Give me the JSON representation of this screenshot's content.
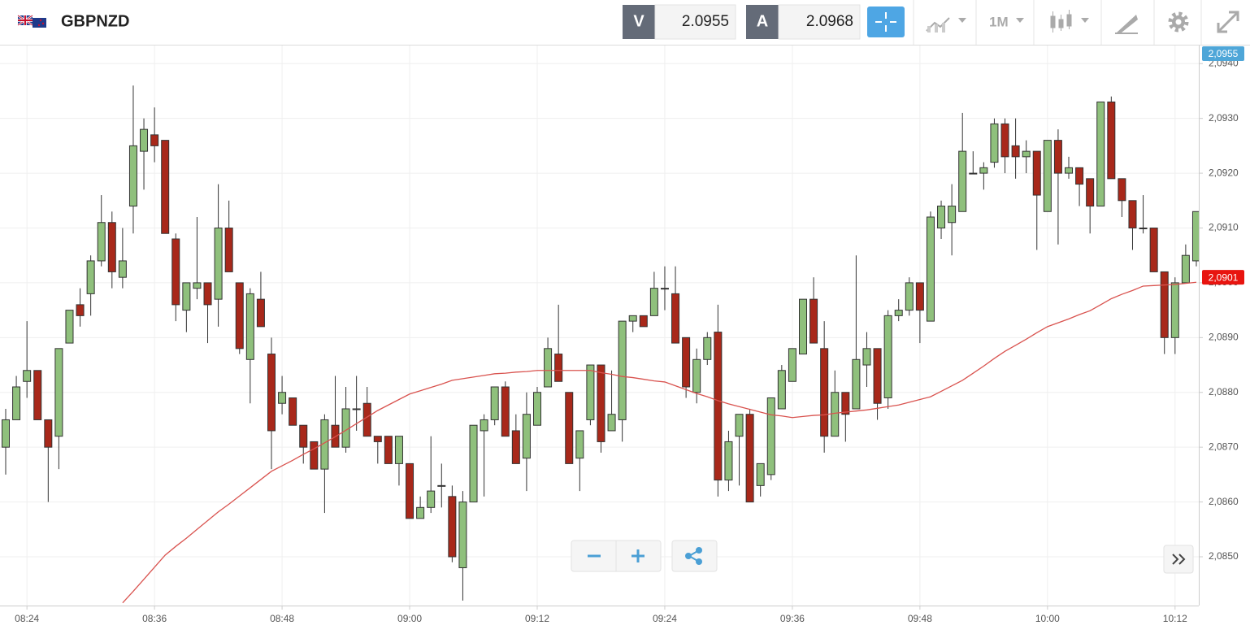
{
  "header": {
    "symbol": "GBPNZD",
    "bid_label": "V",
    "bid": 2.0955,
    "ask_label": "A",
    "ask": 2.0968,
    "period": "1M"
  },
  "chart_data": {
    "type": "candlestick",
    "categories": [
      null,
      null,
      "08:24",
      null,
      null,
      null,
      null,
      null,
      null,
      null,
      null,
      null,
      null,
      null,
      "08:36",
      null,
      null,
      null,
      null,
      null,
      null,
      null,
      null,
      null,
      null,
      null,
      "08:48",
      null,
      null,
      null,
      null,
      null,
      null,
      null,
      null,
      null,
      null,
      null,
      "09:00",
      null,
      null,
      null,
      null,
      null,
      null,
      null,
      null,
      null,
      null,
      null,
      "09:12",
      null,
      null,
      null,
      null,
      null,
      null,
      null,
      null,
      null,
      null,
      null,
      "09:24",
      null,
      null,
      null,
      null,
      null,
      null,
      null,
      null,
      null,
      null,
      null,
      "09:36",
      null,
      null,
      null,
      null,
      null,
      null,
      null,
      null,
      null,
      null,
      null,
      "09:48",
      null,
      null,
      null,
      null,
      null,
      null,
      null,
      null,
      null,
      null,
      null,
      "10:00",
      null,
      null,
      null,
      null,
      null,
      null,
      null,
      null,
      null,
      null,
      null,
      "10:12",
      null,
      null
    ],
    "open": [
      2.087,
      2.0875,
      2.0882,
      2.0884,
      2.0875,
      2.0872,
      2.0889,
      2.0896,
      2.0898,
      2.0904,
      2.0911,
      2.0901,
      2.0914,
      2.0924,
      2.0927,
      2.0926,
      2.0908,
      2.0895,
      2.0899,
      2.09,
      2.0897,
      2.091,
      2.09,
      2.0886,
      2.0897,
      2.0887,
      2.0878,
      2.0879,
      2.0874,
      2.0871,
      2.0866,
      2.0874,
      2.087,
      2.0877,
      2.0878,
      2.0872,
      2.0872,
      2.0867,
      2.0867,
      2.0857,
      2.0859,
      2.0863,
      2.0861,
      2.0848,
      2.086,
      2.0873,
      2.0875,
      2.0881,
      2.0873,
      2.0868,
      2.0874,
      2.0881,
      2.0887,
      2.088,
      2.0868,
      2.0875,
      2.0885,
      2.0873,
      2.0875,
      2.0893,
      2.0894,
      2.0894,
      2.0899,
      2.0898,
      2.089,
      2.088,
      2.0886,
      2.0891,
      2.0864,
      2.0872,
      2.0876,
      2.0863,
      2.0865,
      2.0877,
      2.0882,
      2.0887,
      2.0897,
      2.0888,
      2.0872,
      2.088,
      2.0877,
      2.0885,
      2.0888,
      2.0879,
      2.0894,
      2.0895,
      2.09,
      2.0893,
      2.091,
      2.0911,
      2.0913,
      2.092,
      2.092,
      2.0922,
      2.0929,
      2.0925,
      2.0923,
      2.0924,
      2.0913,
      2.0926,
      2.092,
      2.0921,
      2.0919,
      2.0914,
      2.0933,
      2.0919,
      2.0915,
      2.091,
      2.091,
      2.0902,
      2.089,
      2.09,
      2.0904
    ],
    "high": [
      2.0877,
      2.0883,
      2.0893,
      2.0884,
      2.0875,
      2.0888,
      2.0895,
      2.0899,
      2.0905,
      2.0916,
      2.0913,
      2.091,
      2.0936,
      2.093,
      2.0932,
      2.0926,
      2.0909,
      2.09,
      2.0912,
      2.09,
      2.0918,
      2.0915,
      2.09,
      2.0899,
      2.0902,
      2.089,
      2.0883,
      2.0879,
      2.0874,
      2.0871,
      2.0876,
      2.0883,
      2.0881,
      2.0883,
      2.0881,
      2.0872,
      2.0872,
      2.0872,
      2.0867,
      2.0861,
      2.0872,
      2.0867,
      2.0863,
      2.0862,
      2.0874,
      2.0876,
      2.0881,
      2.0882,
      2.0876,
      2.088,
      2.0881,
      2.089,
      2.0896,
      2.088,
      2.0873,
      2.0885,
      2.0885,
      2.0884,
      2.0893,
      2.0894,
      2.0894,
      2.0902,
      2.0903,
      2.0903,
      2.089,
      2.0888,
      2.0891,
      2.0896,
      2.0873,
      2.0876,
      2.0877,
      2.0867,
      2.0879,
      2.0885,
      2.0888,
      2.0897,
      2.0901,
      2.0893,
      2.0884,
      2.088,
      2.0905,
      2.0891,
      2.0888,
      2.0895,
      2.0897,
      2.0901,
      2.09,
      2.0913,
      2.0915,
      2.0918,
      2.0931,
      2.0924,
      2.0922,
      2.093,
      2.093,
      2.093,
      2.0926,
      2.0924,
      2.0926,
      2.0928,
      2.0923,
      2.0921,
      2.0919,
      2.0933,
      2.0934,
      2.0919,
      2.0915,
      2.0916,
      2.091,
      2.0902,
      2.0901,
      2.0907,
      2.0913
    ],
    "low": [
      2.0865,
      2.0875,
      2.0879,
      2.0875,
      2.086,
      2.0866,
      2.0889,
      2.0892,
      2.0894,
      2.0903,
      2.0899,
      2.0899,
      2.0909,
      2.0917,
      2.0922,
      2.0909,
      2.0893,
      2.0891,
      2.0897,
      2.0889,
      2.0892,
      2.0902,
      2.0887,
      2.0878,
      2.0892,
      2.0866,
      2.0876,
      2.0874,
      2.0867,
      2.0866,
      2.0858,
      2.087,
      2.0869,
      2.0873,
      2.0872,
      2.0867,
      2.0867,
      2.0863,
      2.0857,
      2.0857,
      2.0858,
      2.0859,
      2.0849,
      2.0842,
      2.086,
      2.0861,
      2.0874,
      2.0872,
      2.0867,
      2.0862,
      2.0874,
      2.0881,
      2.0882,
      2.0867,
      2.0862,
      2.0874,
      2.0869,
      2.0873,
      2.0871,
      2.0891,
      2.0892,
      2.0894,
      2.0895,
      2.0889,
      2.0879,
      2.0878,
      2.0885,
      2.0861,
      2.0862,
      2.0863,
      2.086,
      2.0861,
      2.0864,
      2.0877,
      2.0882,
      2.0887,
      2.0889,
      2.0869,
      2.0872,
      2.0871,
      2.0877,
      2.0881,
      2.0875,
      2.0877,
      2.0893,
      2.0894,
      2.0889,
      2.0893,
      2.0908,
      2.0905,
      2.0913,
      2.092,
      2.0917,
      2.0921,
      2.092,
      2.0919,
      2.092,
      2.0906,
      2.0913,
      2.0907,
      2.0919,
      2.0914,
      2.0909,
      2.0914,
      2.0919,
      2.0912,
      2.0906,
      2.0909,
      2.0902,
      2.0887,
      2.0887,
      2.09,
      2.0903
    ],
    "close": [
      2.0875,
      2.0881,
      2.0884,
      2.0875,
      2.087,
      2.0888,
      2.0895,
      2.0894,
      2.0904,
      2.0911,
      2.0902,
      2.0904,
      2.0925,
      2.0928,
      2.0925,
      2.0909,
      2.0896,
      2.09,
      2.09,
      2.0896,
      2.091,
      2.0902,
      2.0888,
      2.0898,
      2.0892,
      2.0873,
      2.088,
      2.0874,
      2.087,
      2.0866,
      2.0875,
      2.087,
      2.0877,
      2.0877,
      2.0872,
      2.0871,
      2.0867,
      2.0872,
      2.0857,
      2.0859,
      2.0862,
      2.0863,
      2.085,
      2.086,
      2.0874,
      2.0875,
      2.0881,
      2.0872,
      2.0867,
      2.0876,
      2.088,
      2.0888,
      2.0882,
      2.0867,
      2.0873,
      2.0885,
      2.0871,
      2.0876,
      2.0893,
      2.0894,
      2.0892,
      2.0899,
      2.0899,
      2.0889,
      2.0881,
      2.0886,
      2.089,
      2.0864,
      2.0871,
      2.0876,
      2.086,
      2.0867,
      2.0879,
      2.0884,
      2.0888,
      2.0897,
      2.0889,
      2.0872,
      2.088,
      2.0876,
      2.0886,
      2.0888,
      2.0878,
      2.0894,
      2.0895,
      2.09,
      2.0895,
      2.0912,
      2.0914,
      2.0914,
      2.0924,
      2.092,
      2.0921,
      2.0929,
      2.0923,
      2.0923,
      2.0924,
      2.0916,
      2.0926,
      2.092,
      2.0921,
      2.0918,
      2.0914,
      2.0933,
      2.0919,
      2.0915,
      2.091,
      2.091,
      2.0902,
      2.089,
      2.09,
      2.0905,
      2.0913
    ],
    "up_color": "#8fc07c",
    "down_color": "#a8281a",
    "moving_average": {
      "color": "#d9534f",
      "values": [
        null,
        null,
        null,
        null,
        null,
        null,
        null,
        null,
        null,
        null,
        null,
        2.08416,
        2.08437,
        2.08459,
        2.08481,
        2.08503,
        2.08519,
        2.08534,
        2.0855,
        2.08566,
        2.08582,
        2.08596,
        2.08611,
        2.08626,
        2.08641,
        2.08656,
        2.08666,
        2.08676,
        2.08687,
        2.08697,
        2.08708,
        2.08719,
        2.08731,
        2.08743,
        2.08755,
        2.08767,
        2.08777,
        2.08787,
        2.08797,
        2.08803,
        2.08809,
        2.08815,
        2.08822,
        2.08825,
        2.08828,
        2.08831,
        2.08834,
        2.08835,
        2.08837,
        2.08838,
        2.0884,
        2.0884,
        2.0884,
        2.0884,
        2.0884,
        2.0884,
        2.08836,
        2.08833,
        2.08829,
        2.08827,
        2.08824,
        2.08821,
        2.08819,
        2.08812,
        2.08805,
        2.08798,
        2.08792,
        2.08785,
        2.08779,
        2.08774,
        2.08769,
        2.08764,
        2.08759,
        2.08757,
        2.08754,
        2.08756,
        2.08758,
        2.08759,
        2.08762,
        2.08764,
        2.08766,
        2.08768,
        2.08771,
        2.08774,
        2.08777,
        2.08782,
        2.08787,
        2.08792,
        2.08802,
        2.08812,
        2.08822,
        2.08835,
        2.08848,
        2.08862,
        2.08875,
        2.08886,
        2.08897,
        2.08909,
        2.0892,
        2.08927,
        2.08934,
        2.08942,
        2.08949,
        2.0896,
        2.08971,
        2.08979,
        2.08986,
        2.08994,
        2.08995,
        2.08996,
        2.08997,
        2.08999,
        2.09001
      ]
    },
    "ylim": [
      2.08411,
      2.09433
    ],
    "yticks": [
      {
        "value": 2.085,
        "label": "2,0850"
      },
      {
        "value": 2.086,
        "label": "2,0860"
      },
      {
        "value": 2.087,
        "label": "2,0870"
      },
      {
        "value": 2.088,
        "label": "2,0880"
      },
      {
        "value": 2.089,
        "label": "2,0890"
      },
      {
        "value": 2.09,
        "label": "2,0900"
      },
      {
        "value": 2.091,
        "label": "2,0910"
      },
      {
        "value": 2.092,
        "label": "2,0920"
      },
      {
        "value": 2.093,
        "label": "2,0930"
      },
      {
        "value": 2.094,
        "label": "2,0940"
      }
    ],
    "grid": true,
    "price_tags": [
      {
        "value": 2.0955,
        "label": "2,0955",
        "color": "#4ea6d8"
      },
      {
        "value": 2.0901,
        "label": "2,0901",
        "color": "#e8140f"
      }
    ]
  }
}
